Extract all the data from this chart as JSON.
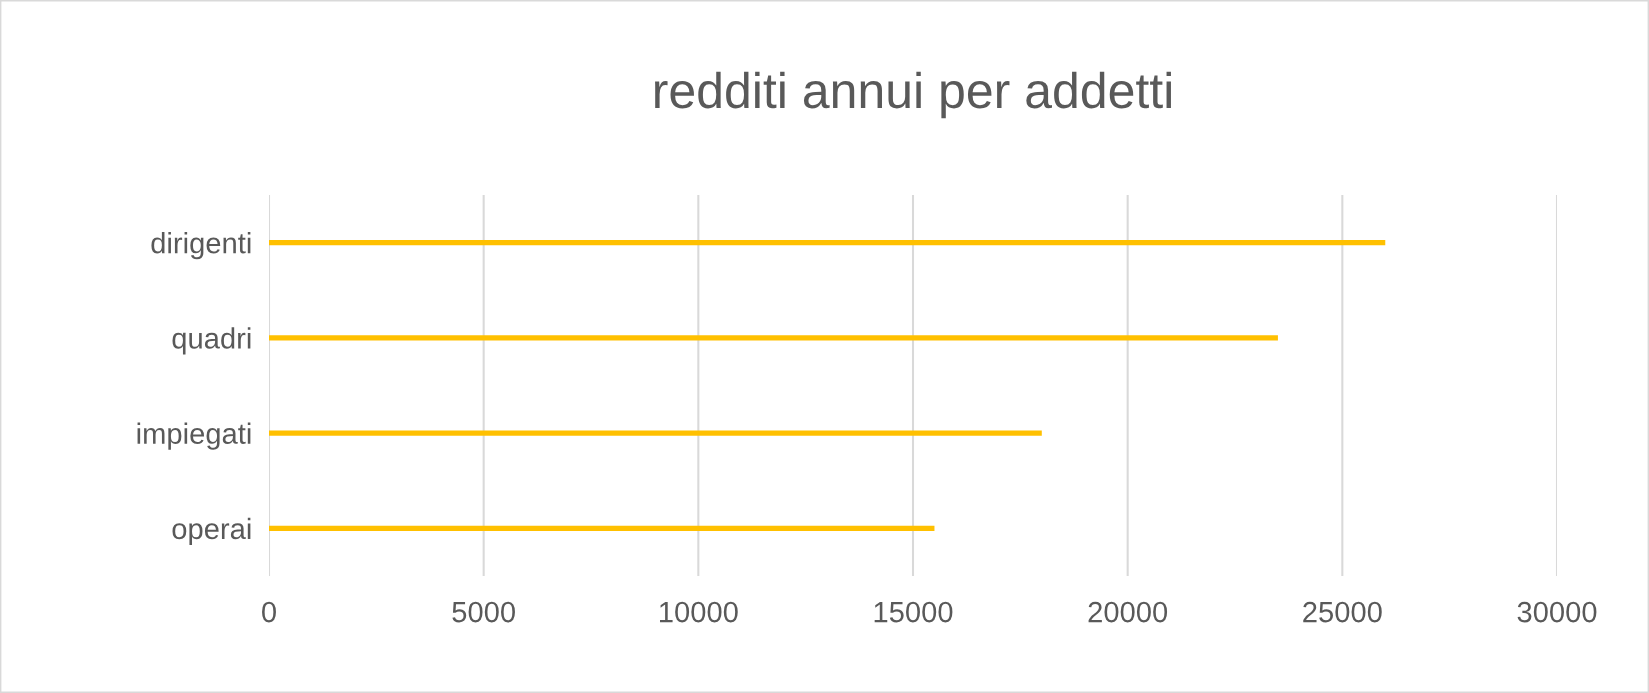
{
  "chart_data": {
    "type": "bar",
    "orientation": "horizontal",
    "title": "redditi annui per addetti",
    "categories": [
      "dirigenti",
      "quadri",
      "impiegati",
      "operai"
    ],
    "values": [
      26000,
      23500,
      18000,
      15500
    ],
    "color": "#ffc000",
    "xlim": [
      0,
      30000
    ],
    "xticks": [
      0,
      5000,
      10000,
      15000,
      20000,
      25000,
      30000
    ],
    "grid": "x",
    "legend": false
  }
}
